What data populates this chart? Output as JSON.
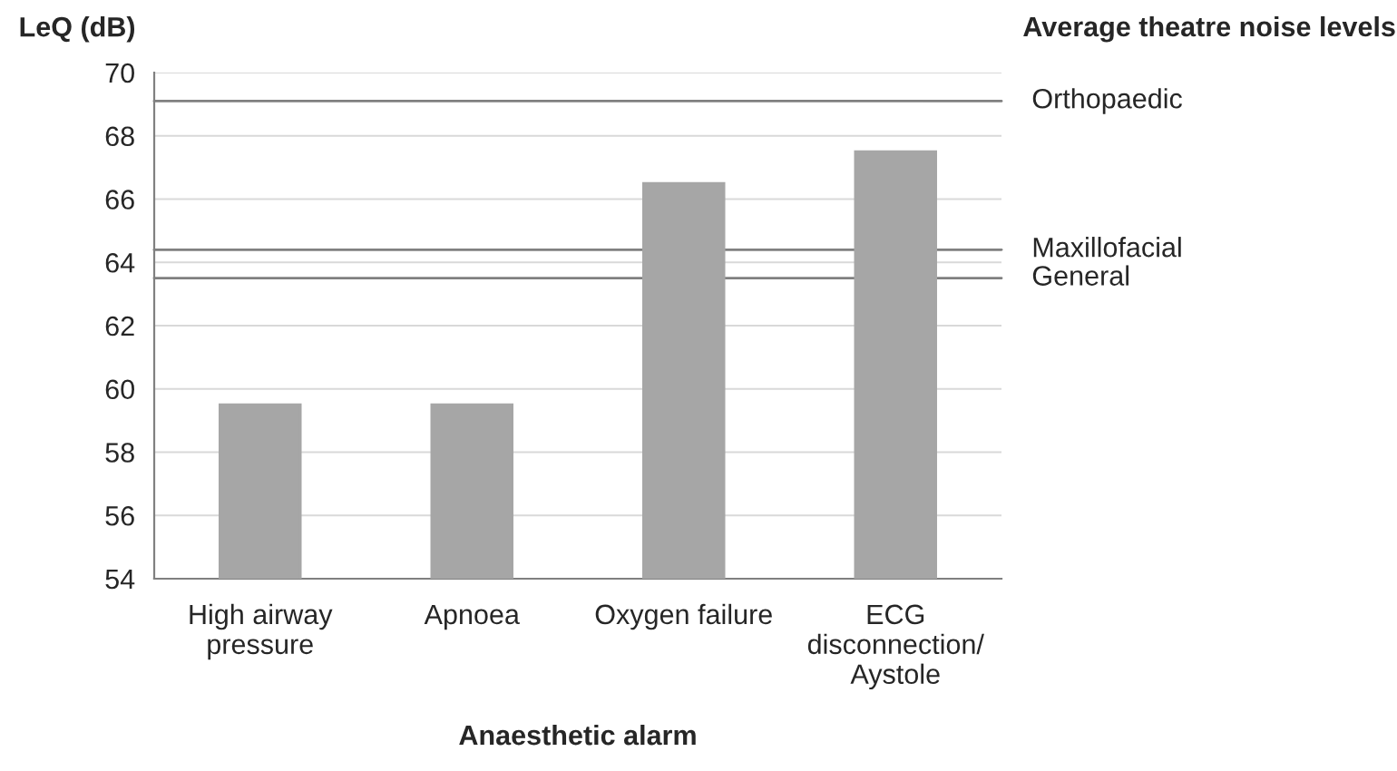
{
  "chart_data": {
    "type": "bar",
    "xlabel": "Anaesthetic alarm",
    "ylabel": "LeQ (dB)",
    "categories": [
      "High airway\npressure",
      "Apnoea",
      "Oxygen failure",
      "ECG\ndisconnection/\nAystole"
    ],
    "values": [
      59.5,
      59.5,
      66.5,
      67.5
    ],
    "color": "#a6a6a6",
    "ylim": [
      54,
      70
    ],
    "yticks": [
      54,
      56,
      58,
      60,
      62,
      64,
      66,
      68,
      70
    ],
    "grid": "y",
    "annotations": [
      "Average theatre noise levels"
    ],
    "ref_lines": [
      {
        "axis": "y",
        "value": 69.1,
        "label": "Orthopaedic",
        "color": "#808080"
      },
      {
        "axis": "y",
        "value": 64.4,
        "label": "Maxillofacial",
        "color": "#808080"
      },
      {
        "axis": "y",
        "value": 63.5,
        "label": "General",
        "color": "#808080"
      }
    ]
  }
}
